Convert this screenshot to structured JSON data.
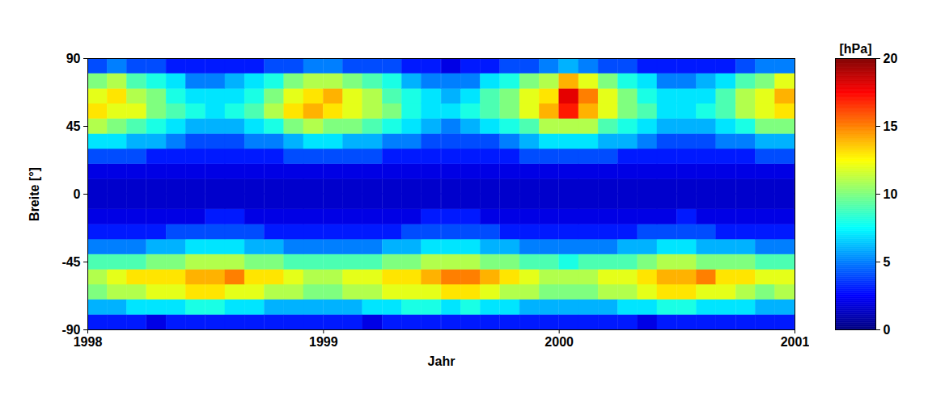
{
  "chart_data": {
    "type": "heatmap",
    "x_label": "Jahr",
    "y_label": "Breite [°]",
    "x": [
      1998.042,
      1998.125,
      1998.208,
      1998.292,
      1998.375,
      1998.458,
      1998.542,
      1998.625,
      1998.708,
      1998.792,
      1998.875,
      1998.958,
      1999.042,
      1999.125,
      1999.208,
      1999.292,
      1999.375,
      1999.458,
      1999.542,
      1999.625,
      1999.708,
      1999.792,
      1999.875,
      1999.958,
      2000.042,
      2000.125,
      2000.208,
      2000.292,
      2000.375,
      2000.458,
      2000.542,
      2000.625,
      2000.708,
      2000.792,
      2000.875,
      2000.958
    ],
    "y": [
      -85,
      -75,
      -65,
      -55,
      -45,
      -35,
      -25,
      -15,
      -5,
      5,
      15,
      25,
      35,
      45,
      55,
      65,
      75,
      85
    ],
    "values": [
      [
        3,
        3,
        3,
        2,
        3,
        3,
        3,
        3,
        3,
        3,
        3,
        3,
        3,
        3,
        2,
        3,
        3,
        3,
        3,
        3,
        3,
        3,
        3,
        3,
        3,
        3,
        3,
        3,
        2,
        3,
        3,
        3,
        3,
        3,
        3,
        3
      ],
      [
        6,
        6,
        7,
        7,
        7,
        8,
        8,
        7,
        7,
        6,
        6,
        6,
        6,
        6,
        7,
        7,
        8,
        8,
        7,
        8,
        7,
        7,
        6,
        6,
        6,
        6,
        6,
        7,
        7,
        8,
        8,
        7,
        7,
        7,
        6,
        6
      ],
      [
        10,
        11,
        11,
        12,
        12,
        13,
        13,
        12,
        12,
        11,
        11,
        10,
        10,
        11,
        11,
        12,
        12,
        12,
        13,
        13,
        12,
        11,
        11,
        10,
        10,
        10,
        11,
        11,
        12,
        13,
        13,
        12,
        12,
        11,
        10,
        11
      ],
      [
        11,
        12,
        13,
        13,
        13,
        14,
        14,
        15,
        13,
        13,
        12,
        11,
        11,
        12,
        12,
        13,
        13,
        14,
        15,
        15,
        14,
        13,
        12,
        11,
        11,
        11,
        12,
        12,
        13,
        14,
        14,
        15,
        13,
        13,
        12,
        12
      ],
      [
        9,
        9,
        9,
        10,
        10,
        11,
        11,
        11,
        10,
        10,
        9,
        9,
        9,
        9,
        9,
        10,
        10,
        11,
        11,
        11,
        10,
        10,
        9,
        9,
        8,
        9,
        9,
        9,
        10,
        11,
        11,
        10,
        10,
        10,
        9,
        9
      ],
      [
        5,
        5,
        5,
        6,
        6,
        7,
        7,
        7,
        6,
        6,
        5,
        5,
        5,
        5,
        5,
        6,
        6,
        7,
        7,
        7,
        6,
        6,
        5,
        5,
        5,
        5,
        5,
        6,
        6,
        7,
        7,
        6,
        6,
        6,
        5,
        5
      ],
      [
        3,
        3,
        3,
        3,
        4,
        4,
        4,
        4,
        4,
        3,
        3,
        3,
        3,
        3,
        3,
        3,
        4,
        4,
        4,
        4,
        4,
        3,
        3,
        3,
        3,
        3,
        3,
        3,
        4,
        4,
        4,
        4,
        3,
        3,
        3,
        3
      ],
      [
        2,
        2,
        2,
        2,
        2,
        2,
        3,
        3,
        2,
        2,
        2,
        2,
        2,
        2,
        2,
        2,
        2,
        3,
        3,
        3,
        2,
        2,
        2,
        2,
        2,
        2,
        2,
        2,
        2,
        2,
        3,
        2,
        2,
        2,
        2,
        2
      ],
      [
        1.5,
        1.5,
        1.5,
        1.5,
        1.5,
        1.5,
        1.5,
        1.5,
        1.5,
        1.5,
        1.5,
        1.5,
        1.5,
        1.5,
        1.5,
        1.5,
        1.5,
        1.5,
        1.5,
        1.5,
        1.5,
        1.5,
        1.5,
        1.5,
        1.5,
        1.5,
        1.5,
        1.5,
        1.5,
        1.5,
        1.5,
        1.5,
        1.5,
        1.5,
        1.5,
        1.5
      ],
      [
        1.5,
        1.5,
        1.5,
        1.5,
        1.5,
        1.5,
        1.5,
        1.5,
        1.5,
        1.5,
        1.5,
        1.5,
        1.5,
        1.5,
        1.5,
        1.5,
        1.5,
        1.5,
        1.5,
        1.5,
        1.5,
        1.5,
        1.5,
        1.5,
        1.5,
        1.5,
        1.5,
        1.5,
        1.5,
        1.5,
        1.5,
        1.5,
        1.5,
        1.5,
        1.5,
        1.5
      ],
      [
        2,
        2,
        2,
        2,
        2,
        2,
        2,
        2,
        2,
        2,
        2,
        2,
        2,
        2,
        2,
        2,
        2,
        2,
        2,
        2,
        2,
        2,
        2,
        2,
        2,
        2,
        2,
        2,
        2,
        2,
        2,
        2,
        2,
        2,
        2,
        2
      ],
      [
        4,
        4,
        4,
        3,
        3,
        3,
        3,
        3,
        3,
        3,
        4,
        4,
        4,
        4,
        4,
        3,
        3,
        3,
        3,
        3,
        3,
        3,
        4,
        4,
        4,
        4,
        4,
        3,
        3,
        3,
        3,
        3,
        3,
        3,
        4,
        4
      ],
      [
        7,
        7,
        6,
        6,
        5,
        4,
        4,
        4,
        5,
        5,
        6,
        7,
        7,
        6,
        6,
        5,
        5,
        4,
        4,
        4,
        4,
        5,
        6,
        7,
        7,
        7,
        6,
        6,
        5,
        4,
        4,
        4,
        5,
        5,
        6,
        6
      ],
      [
        11,
        10,
        9,
        8,
        7,
        6,
        6,
        6,
        7,
        8,
        10,
        11,
        10,
        10,
        9,
        8,
        7,
        6,
        5,
        6,
        7,
        8,
        9,
        11,
        11,
        11,
        9,
        8,
        7,
        6,
        6,
        6,
        7,
        8,
        10,
        10
      ],
      [
        13,
        12,
        12,
        10,
        9,
        8,
        7,
        8,
        9,
        11,
        13,
        14,
        13,
        12,
        11,
        10,
        8,
        7,
        7,
        8,
        9,
        10,
        12,
        14,
        17,
        14,
        12,
        10,
        9,
        7,
        7,
        8,
        9,
        11,
        12,
        13
      ],
      [
        12,
        13,
        11,
        10,
        8,
        7,
        7,
        7,
        8,
        10,
        12,
        13,
        14,
        12,
        11,
        9,
        8,
        7,
        6,
        7,
        9,
        10,
        12,
        13,
        18,
        15,
        12,
        10,
        8,
        7,
        7,
        7,
        9,
        11,
        12,
        14
      ],
      [
        10,
        11,
        9,
        8,
        7,
        5,
        5,
        6,
        7,
        8,
        10,
        11,
        11,
        10,
        9,
        8,
        6,
        5,
        5,
        5,
        7,
        8,
        10,
        11,
        14,
        12,
        10,
        8,
        7,
        5,
        5,
        6,
        7,
        9,
        10,
        12
      ],
      [
        4,
        5,
        4,
        4,
        3,
        3,
        3,
        3,
        3,
        4,
        4,
        5,
        5,
        4,
        4,
        4,
        3,
        3,
        2,
        3,
        3,
        4,
        4,
        5,
        6,
        5,
        4,
        4,
        3,
        3,
        3,
        3,
        3,
        4,
        5,
        5
      ]
    ],
    "xlim": [
      1998,
      2001
    ],
    "xticks": [
      1998,
      1999,
      2000,
      2001
    ],
    "ylim": [
      -90,
      90
    ],
    "yticks": [
      -90,
      -45,
      0,
      45,
      90
    ],
    "colorbar": {
      "label": "[hPa]",
      "range": [
        0,
        20
      ],
      "ticks": [
        0,
        5,
        10,
        15,
        20
      ]
    }
  }
}
